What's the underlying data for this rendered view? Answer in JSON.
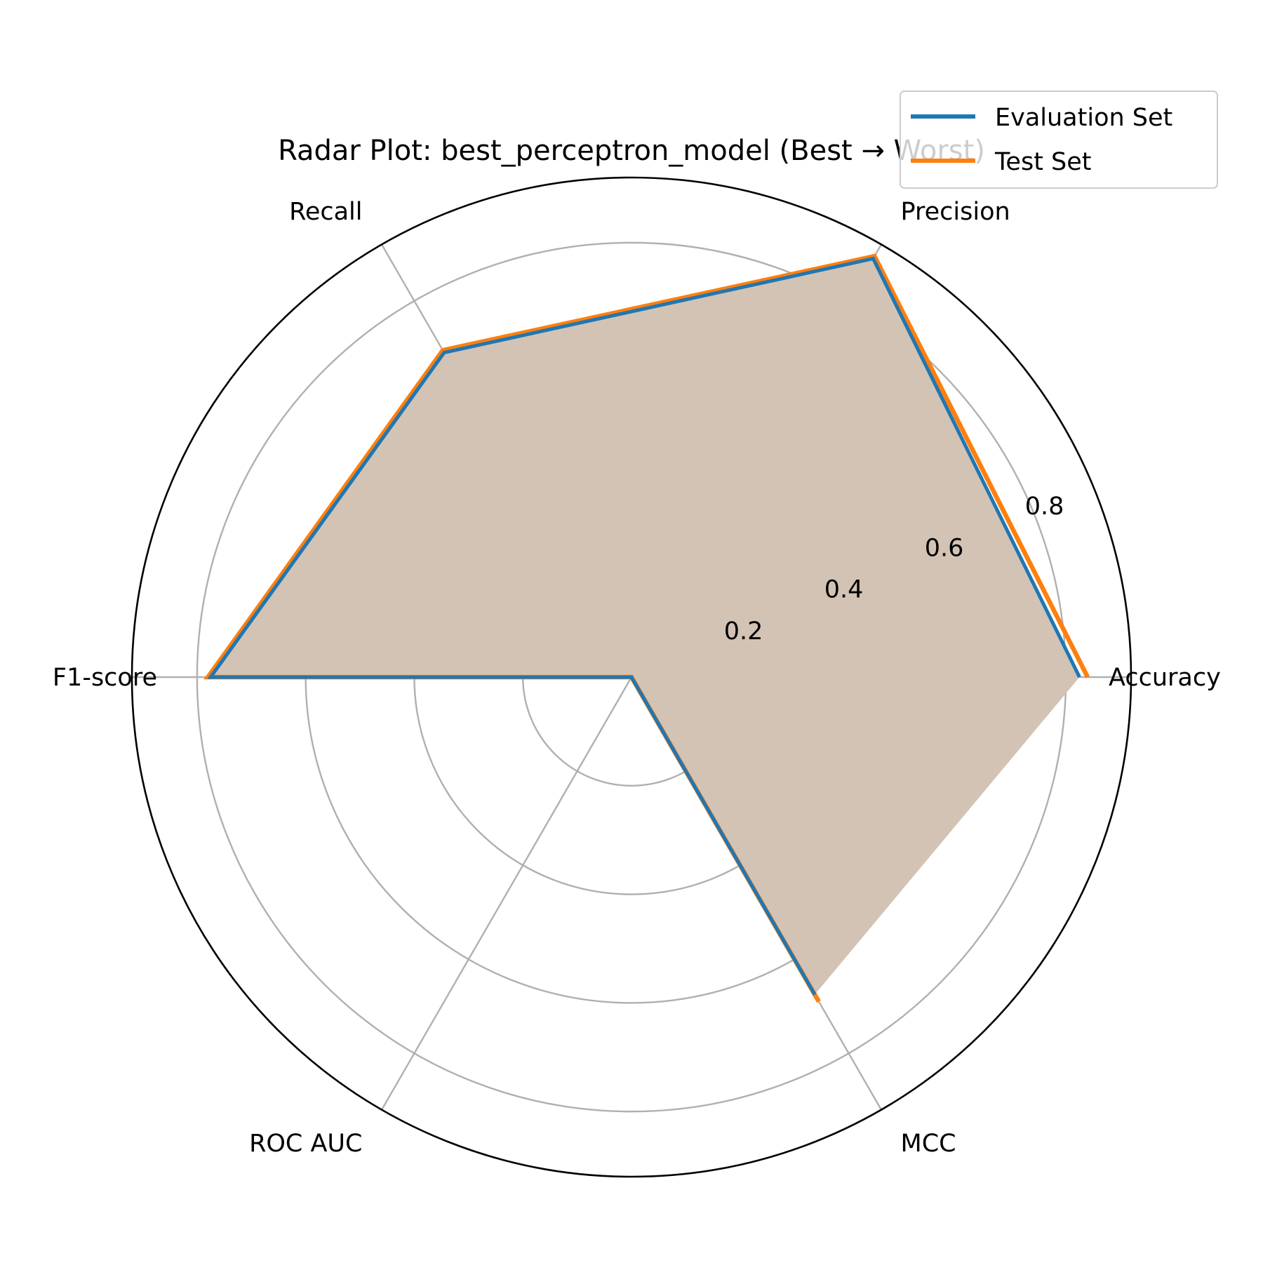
{
  "chart_data": {
    "type": "radar",
    "title": "Radar Plot: best_perceptron_model (Best → Worst)",
    "axes": [
      "Accuracy",
      "Precision",
      "Recall",
      "F1-score",
      "ROC AUC",
      "MCC"
    ],
    "rlim": [
      0,
      0.92
    ],
    "rticks": [
      0.2,
      0.4,
      0.6,
      0.8
    ],
    "rtick_labels": [
      "0.2",
      "0.4",
      "0.6",
      "0.8"
    ],
    "grid": true,
    "legend_position": "top-right",
    "fill_color": "#d3c3b4",
    "series": [
      {
        "name": "Evaluation Set",
        "color": "#1f77b4",
        "values": [
          0.825,
          0.89,
          0.69,
          0.775,
          0.0,
          0.675
        ]
      },
      {
        "name": "Test Set",
        "color": "#ff7f0e",
        "values": [
          0.84,
          0.895,
          0.695,
          0.78,
          0.0,
          0.69
        ]
      }
    ]
  }
}
